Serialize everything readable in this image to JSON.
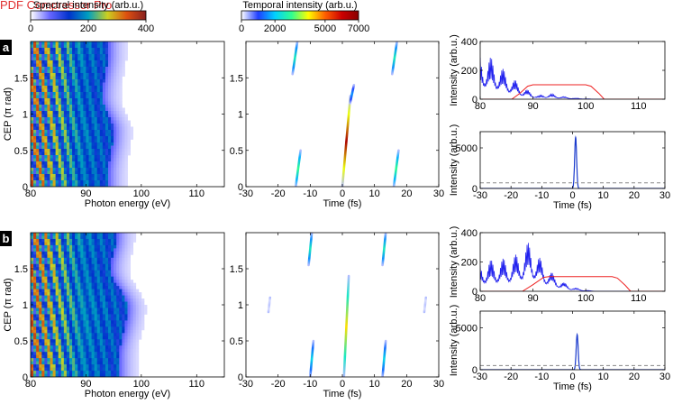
{
  "watermark": "PDF Compressor Pro",
  "colorbars": [
    {
      "id": "spectral",
      "title": "Spectral intensity (arb.u.)",
      "ticks": [
        "0",
        "200",
        "400"
      ],
      "tick_values": [
        0,
        200,
        400
      ],
      "max": 400,
      "colors": [
        "#ffffff",
        "#6666ff",
        "#0033cc",
        "#00a0c0",
        "#ccd020",
        "#dd5010",
        "#882020"
      ]
    },
    {
      "id": "temporal",
      "title": "Temporal intensity (arb.u.)",
      "ticks": [
        "0",
        "2000",
        "5000",
        "7000"
      ],
      "tick_values": [
        0,
        2000,
        5000,
        7000
      ],
      "max": 7000,
      "colors": [
        "#ffffff",
        "#1f3fff",
        "#00d0ff",
        "#30ff90",
        "#ffff00",
        "#ff6000",
        "#cc0000",
        "#880000"
      ]
    }
  ],
  "panel_labels": [
    "a",
    "b"
  ],
  "chart_data": [
    {
      "id": "a-spectral-map",
      "type": "heatmap",
      "row": "a",
      "xlabel": "Photon energy (eV)",
      "ylabel": "CEP (π rad)",
      "xlim": [
        80,
        115
      ],
      "ylim": [
        0,
        2
      ],
      "xticks": [
        80,
        90,
        100,
        110
      ],
      "yticks": [
        0,
        0.5,
        1,
        1.5
      ],
      "xtick_labels": [
        "80",
        "90",
        "100",
        "110"
      ],
      "ytick_labels": [
        "0",
        "0.5",
        "1",
        "1.5"
      ],
      "ridges": [
        {
          "cep": 0.15,
          "energy": 91.5
        },
        {
          "cep": 0.75,
          "energy": 92.5
        },
        {
          "cep": 1.25,
          "energy": 90.5
        },
        {
          "cep": 1.85,
          "energy": 91.5
        }
      ]
    },
    {
      "id": "a-temporal-map",
      "type": "heatmap",
      "row": "a",
      "xlabel": "Time (fs)",
      "ylabel": "",
      "xlim": [
        -30,
        30
      ],
      "ylim": [
        0,
        2
      ],
      "xticks": [
        -30,
        -20,
        -10,
        0,
        10,
        20,
        30
      ],
      "yticks": [
        0,
        0.5,
        1,
        1.5
      ],
      "xtick_labels": [
        "-30",
        "-20",
        "-10",
        "0",
        "10",
        "20",
        "30"
      ],
      "ytick_labels": [
        "0",
        "0.5",
        "1",
        "1.5"
      ],
      "streaks": [
        {
          "t_top": -14.0,
          "t_bottom": -15.5,
          "cep_top": 2.0,
          "cep_bottom": 1.55,
          "peak": 2600
        },
        {
          "t_top": -13.0,
          "t_bottom": -14.5,
          "cep_top": 0.5,
          "cep_bottom": 0.0,
          "peak": 3000
        },
        {
          "t_top": 2.5,
          "t_bottom": 0.0,
          "cep_top": 1.25,
          "cep_bottom": 0.0,
          "peak": 6500
        },
        {
          "t_top": 3.6,
          "t_bottom": 2.4,
          "cep_top": 1.4,
          "cep_bottom": 1.15,
          "peak": 1600
        },
        {
          "t_top": 17.0,
          "t_bottom": 15.5,
          "cep_top": 2.0,
          "cep_bottom": 1.55,
          "peak": 2600
        },
        {
          "t_top": 17.5,
          "t_bottom": 16.0,
          "cep_top": 0.5,
          "cep_bottom": 0.0,
          "peak": 3000
        }
      ]
    },
    {
      "id": "a-spectrum",
      "type": "line",
      "row": "a",
      "xlabel": "",
      "ylabel": "Intensity (arb.u.)",
      "xlim": [
        80,
        115
      ],
      "ylim": [
        0,
        400
      ],
      "xticks": [
        80,
        90,
        100,
        110
      ],
      "yticks": [
        0,
        200,
        400
      ],
      "xtick_labels": [
        "80",
        "90",
        "100",
        "110"
      ],
      "ytick_labels": [
        "0",
        "200",
        "400"
      ],
      "series": [
        {
          "color": "#2222ee",
          "envelope": [
            [
              80,
              330
            ],
            [
              82,
              300
            ],
            [
              84,
              230
            ],
            [
              86,
              160
            ],
            [
              88,
              90
            ],
            [
              90,
              45
            ],
            [
              91,
              25
            ],
            [
              92,
              35
            ],
            [
              93,
              42
            ],
            [
              94,
              35
            ],
            [
              96,
              18
            ],
            [
              98,
              8
            ],
            [
              100,
              3
            ],
            [
              102,
              0
            ],
            [
              115,
              0
            ]
          ],
          "oscillating": true
        },
        {
          "color": "#ee2222",
          "points": [
            [
              80,
              0
            ],
            [
              86,
              0
            ],
            [
              87.5,
              40
            ],
            [
              89,
              90
            ],
            [
              90,
              100
            ],
            [
              100,
              100
            ],
            [
              101,
              90
            ],
            [
              102.5,
              40
            ],
            [
              103.5,
              0
            ],
            [
              115,
              0
            ]
          ],
          "oscillating": false
        }
      ]
    },
    {
      "id": "a-pulse",
      "type": "line",
      "row": "a",
      "xlabel": "Time (fs)",
      "ylabel": "Intensity (arb.u.)",
      "xlim": [
        -30,
        30
      ],
      "ylim": [
        0,
        7000
      ],
      "xticks": [
        -30,
        -20,
        -10,
        0,
        10,
        20,
        30
      ],
      "yticks": [
        0,
        5000
      ],
      "xtick_labels": [
        "-30",
        "-20",
        "-10",
        "0",
        "10",
        "20",
        "30"
      ],
      "ytick_labels": [
        "0",
        "5000"
      ],
      "pulse": {
        "center": 1.0,
        "peak": 6300,
        "width": 0.45,
        "color": "#1a3acc"
      },
      "dashed_level": 700
    },
    {
      "id": "b-spectral-map",
      "type": "heatmap",
      "row": "b",
      "xlabel": "Photon energy (eV)",
      "ylabel": "CEP (π rad)",
      "xlim": [
        80,
        115
      ],
      "ylim": [
        0,
        2
      ],
      "xticks": [
        80,
        90,
        100,
        110
      ],
      "yticks": [
        0,
        0.5,
        1,
        1.5
      ],
      "xtick_labels": [
        "80",
        "90",
        "100",
        "110"
      ],
      "ytick_labels": [
        "0",
        "0.5",
        "1",
        "1.5"
      ],
      "ridges": [
        {
          "cep": 0.25,
          "energy": 93.5
        },
        {
          "cep": 0.95,
          "energy": 95.0
        },
        {
          "cep": 1.5,
          "energy": 92.0
        },
        {
          "cep": 1.95,
          "energy": 93.0
        }
      ]
    },
    {
      "id": "b-temporal-map",
      "type": "heatmap",
      "row": "b",
      "xlabel": "Time (fs)",
      "ylabel": "",
      "xlim": [
        -30,
        30
      ],
      "ylim": [
        0,
        2
      ],
      "xticks": [
        -30,
        -20,
        -10,
        0,
        10,
        20,
        30
      ],
      "yticks": [
        0,
        0.5,
        1,
        1.5
      ],
      "xtick_labels": [
        "-30",
        "-20",
        "-10",
        "0",
        "10",
        "20",
        "30"
      ],
      "ytick_labels": [
        "0",
        "0.5",
        "1",
        "1.5"
      ],
      "streaks": [
        {
          "t_top": -9.5,
          "t_bottom": -10.5,
          "cep_top": 2.0,
          "cep_bottom": 1.55,
          "peak": 2600
        },
        {
          "t_top": -9.0,
          "t_bottom": -10.0,
          "cep_top": 0.5,
          "cep_bottom": 0.0,
          "peak": 2200
        },
        {
          "t_top": 2.0,
          "t_bottom": 0.5,
          "cep_top": 1.4,
          "cep_bottom": 0.0,
          "peak": 4200
        },
        {
          "t_top": 13.5,
          "t_bottom": 12.5,
          "cep_top": 2.0,
          "cep_bottom": 1.55,
          "peak": 2600
        },
        {
          "t_top": 13.5,
          "t_bottom": 12.5,
          "cep_top": 0.5,
          "cep_bottom": 0.0,
          "peak": 2200
        },
        {
          "t_top": -22.5,
          "t_bottom": -23.0,
          "cep_top": 1.1,
          "cep_bottom": 0.9,
          "peak": 300
        },
        {
          "t_top": 26.0,
          "t_bottom": 25.5,
          "cep_top": 1.1,
          "cep_bottom": 0.9,
          "peak": 300
        }
      ]
    },
    {
      "id": "b-spectrum",
      "type": "line",
      "row": "b",
      "xlabel": "",
      "ylabel": "Intensity (arb.u.)",
      "xlim": [
        80,
        115
      ],
      "ylim": [
        0,
        400
      ],
      "xticks": [
        80,
        90,
        100,
        110
      ],
      "yticks": [
        0,
        200,
        400
      ],
      "xtick_labels": [
        "80",
        "90",
        "100",
        "110"
      ],
      "ytick_labels": [
        "0",
        "200",
        "400"
      ],
      "series": [
        {
          "color": "#2222ee",
          "envelope": [
            [
              80,
              200
            ],
            [
              82,
              220
            ],
            [
              84,
              230
            ],
            [
              86,
              240
            ],
            [
              88,
              300
            ],
            [
              89.5,
              370
            ],
            [
              90.5,
              290
            ],
            [
              92,
              200
            ],
            [
              94,
              120
            ],
            [
              96,
              60
            ],
            [
              98,
              25
            ],
            [
              100,
              8
            ],
            [
              102,
              0
            ],
            [
              115,
              0
            ]
          ],
          "oscillating": true
        },
        {
          "color": "#ee2222",
          "points": [
            [
              80,
              0
            ],
            [
              88,
              0
            ],
            [
              90,
              45
            ],
            [
              92,
              95
            ],
            [
              93,
              100
            ],
            [
              105,
              100
            ],
            [
              106,
              90
            ],
            [
              107.5,
              40
            ],
            [
              108.5,
              0
            ],
            [
              115,
              0
            ]
          ],
          "oscillating": false
        }
      ]
    },
    {
      "id": "b-pulse",
      "type": "line",
      "row": "b",
      "xlabel": "Time (fs)",
      "ylabel": "Intensity (arb.u.)",
      "xlim": [
        -30,
        30
      ],
      "ylim": [
        0,
        7000
      ],
      "xticks": [
        -30,
        -20,
        -10,
        0,
        10,
        20,
        30
      ],
      "yticks": [
        0,
        5000
      ],
      "xtick_labels": [
        "-30",
        "-20",
        "-10",
        "0",
        "10",
        "20",
        "30"
      ],
      "ytick_labels": [
        "0",
        "5000"
      ],
      "pulse": {
        "center": 1.5,
        "peak": 4200,
        "width": 0.45,
        "color": "#1a3acc"
      },
      "dashed_level": 500
    }
  ]
}
